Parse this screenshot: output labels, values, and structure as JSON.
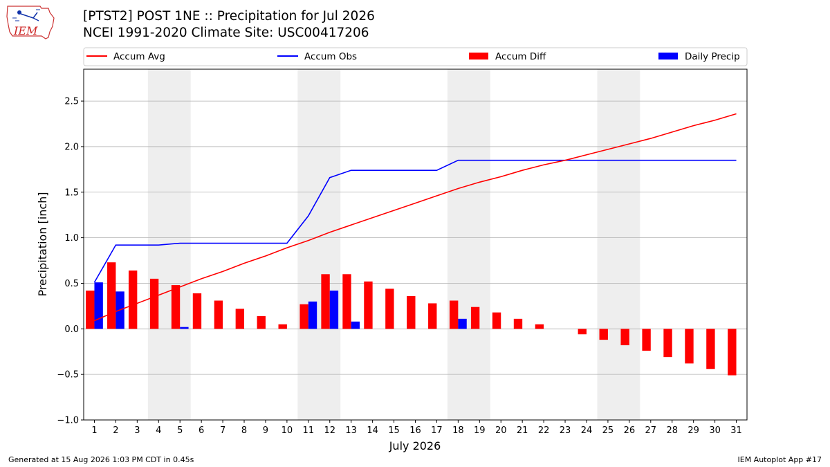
{
  "header": {
    "title_line1": "[PTST2] POST 1NE :: Precipitation for Jul 2026",
    "title_line2": "NCEI 1991-2020 Climate Site: USC00417206",
    "logo_text": "IEM"
  },
  "footer": {
    "left": "Generated at 15 Aug 2026 1:03 PM CDT in 0.45s",
    "right": "IEM Autoplot App #17"
  },
  "chart_data": {
    "type": "bar",
    "xlabel": "July 2026",
    "ylabel": "Precipitation [inch]",
    "ylim": [
      -1.0,
      2.85
    ],
    "yticks": [
      -1.0,
      -0.5,
      0.0,
      0.5,
      1.0,
      1.5,
      2.0,
      2.5
    ],
    "ytick_labels": [
      "−1.0",
      "−0.5",
      "0.0",
      "0.5",
      "1.0",
      "1.5",
      "2.0",
      "2.5"
    ],
    "grid": true,
    "legend_position": "top",
    "x": [
      1,
      2,
      3,
      4,
      5,
      6,
      7,
      8,
      9,
      10,
      11,
      12,
      13,
      14,
      15,
      16,
      17,
      18,
      19,
      20,
      21,
      22,
      23,
      24,
      25,
      26,
      27,
      28,
      29,
      30,
      31
    ],
    "weekend_shading": [
      [
        4,
        5
      ],
      [
        11,
        12
      ],
      [
        18,
        19
      ],
      [
        25,
        26
      ]
    ],
    "series": [
      {
        "name": "Accum Avg",
        "kind": "line",
        "color": "#ff0000",
        "values": [
          0.09,
          0.19,
          0.28,
          0.37,
          0.46,
          0.55,
          0.63,
          0.72,
          0.8,
          0.89,
          0.97,
          1.06,
          1.14,
          1.22,
          1.3,
          1.38,
          1.46,
          1.54,
          1.61,
          1.67,
          1.74,
          1.8,
          1.85,
          1.91,
          1.97,
          2.03,
          2.09,
          2.16,
          2.23,
          2.29,
          2.36
        ]
      },
      {
        "name": "Accum Obs",
        "kind": "line",
        "color": "#0000ff",
        "values": [
          0.51,
          0.92,
          0.92,
          0.92,
          0.94,
          0.94,
          0.94,
          0.94,
          0.94,
          0.94,
          1.24,
          1.66,
          1.74,
          1.74,
          1.74,
          1.74,
          1.74,
          1.85,
          1.85,
          1.85,
          1.85,
          1.85,
          1.85,
          1.85,
          1.85,
          1.85,
          1.85,
          1.85,
          1.85,
          1.85,
          1.85
        ]
      },
      {
        "name": "Accum Diff",
        "kind": "bar",
        "color": "#ff0000",
        "values": [
          0.42,
          0.73,
          0.64,
          0.55,
          0.48,
          0.39,
          0.31,
          0.22,
          0.14,
          0.05,
          0.27,
          0.6,
          0.6,
          0.52,
          0.44,
          0.36,
          0.28,
          0.31,
          0.24,
          0.18,
          0.11,
          0.05,
          0.0,
          -0.06,
          -0.12,
          -0.18,
          -0.24,
          -0.31,
          -0.38,
          -0.44,
          -0.51
        ]
      },
      {
        "name": "Daily Precip",
        "kind": "bar",
        "color": "#0000ff",
        "values": [
          0.51,
          0.41,
          0.0,
          0.0,
          0.02,
          0.0,
          0.0,
          0.0,
          0.0,
          0.0,
          0.3,
          0.42,
          0.08,
          0.0,
          0.0,
          0.0,
          0.0,
          0.11,
          0.0,
          0.0,
          0.0,
          0.0,
          0.0,
          0.0,
          0.0,
          0.0,
          0.0,
          0.0,
          0.0,
          0.0,
          0.0
        ]
      }
    ]
  }
}
